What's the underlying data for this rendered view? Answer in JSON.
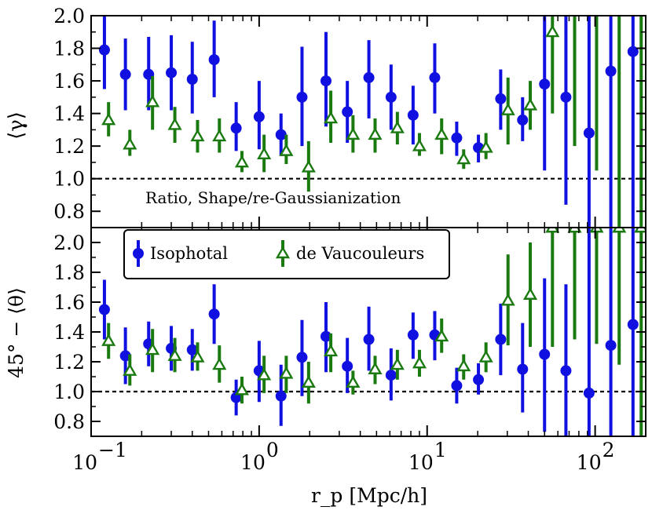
{
  "chart_data": [
    {
      "type": "scatter",
      "panel": "top",
      "ylabel": "⟨γ⟩",
      "annotation": "Ratio, Shape/re-Gaussianization",
      "xscale": "log",
      "xlim": [
        0.1,
        200
      ],
      "ylim": [
        0.7,
        2.0
      ],
      "yticks": [
        0.8,
        1.0,
        1.2,
        1.4,
        1.6,
        1.8,
        2.0
      ],
      "ytick_labels": [
        "0.8",
        "1.0",
        "1.2",
        "1.4",
        "1.6",
        "1.8",
        "2.0"
      ],
      "reference_line": 1.0,
      "series": [
        {
          "name": "Isophotal",
          "color": "#1010e0",
          "marker": "circle",
          "points": [
            {
              "x": 0.12,
              "y": 1.79,
              "lo": 1.55,
              "hi": 2.05
            },
            {
              "x": 0.16,
              "y": 1.64,
              "lo": 1.42,
              "hi": 1.86
            },
            {
              "x": 0.22,
              "y": 1.64,
              "lo": 1.42,
              "hi": 1.87
            },
            {
              "x": 0.3,
              "y": 1.65,
              "lo": 1.42,
              "hi": 1.88
            },
            {
              "x": 0.4,
              "y": 1.61,
              "lo": 1.4,
              "hi": 1.84
            },
            {
              "x": 0.54,
              "y": 1.73,
              "lo": 1.5,
              "hi": 1.97
            },
            {
              "x": 0.73,
              "y": 1.31,
              "lo": 1.17,
              "hi": 1.47
            },
            {
              "x": 1.0,
              "y": 1.38,
              "lo": 1.18,
              "hi": 1.6
            },
            {
              "x": 1.35,
              "y": 1.27,
              "lo": 1.14,
              "hi": 1.4
            },
            {
              "x": 1.8,
              "y": 1.5,
              "lo": 1.2,
              "hi": 1.81
            },
            {
              "x": 2.5,
              "y": 1.6,
              "lo": 1.32,
              "hi": 1.9
            },
            {
              "x": 3.35,
              "y": 1.41,
              "lo": 1.22,
              "hi": 1.6
            },
            {
              "x": 4.5,
              "y": 1.62,
              "lo": 1.37,
              "hi": 1.85
            },
            {
              "x": 6.1,
              "y": 1.5,
              "lo": 1.3,
              "hi": 1.7
            },
            {
              "x": 8.25,
              "y": 1.39,
              "lo": 1.21,
              "hi": 1.57
            },
            {
              "x": 11.1,
              "y": 1.62,
              "lo": 1.4,
              "hi": 1.83
            },
            {
              "x": 15.0,
              "y": 1.25,
              "lo": 1.14,
              "hi": 1.35
            },
            {
              "x": 20.2,
              "y": 1.19,
              "lo": 1.1,
              "hi": 1.27
            },
            {
              "x": 27.4,
              "y": 1.49,
              "lo": 1.3,
              "hi": 1.67
            },
            {
              "x": 37.0,
              "y": 1.36,
              "lo": 1.23,
              "hi": 1.5
            },
            {
              "x": 50.0,
              "y": 1.58,
              "lo": 1.05,
              "hi": 2.05
            },
            {
              "x": 67.0,
              "y": 1.5,
              "lo": 0.84,
              "hi": 2.05
            },
            {
              "x": 92.0,
              "y": 1.28,
              "lo": 0.7,
              "hi": 2.05
            },
            {
              "x": 124.0,
              "y": 1.66,
              "lo": 0.7,
              "hi": 2.05
            },
            {
              "x": 168.0,
              "y": 1.78,
              "lo": 0.7,
              "hi": 2.05
            }
          ]
        },
        {
          "name": "de Vaucouleurs",
          "color": "#1a7a10",
          "marker": "triangle",
          "points": [
            {
              "x": 0.127,
              "y": 1.36,
              "lo": 1.26,
              "hi": 1.47
            },
            {
              "x": 0.17,
              "y": 1.21,
              "lo": 1.14,
              "hi": 1.3
            },
            {
              "x": 0.232,
              "y": 1.47,
              "lo": 1.3,
              "hi": 1.63
            },
            {
              "x": 0.315,
              "y": 1.33,
              "lo": 1.22,
              "hi": 1.44
            },
            {
              "x": 0.43,
              "y": 1.26,
              "lo": 1.16,
              "hi": 1.36
            },
            {
              "x": 0.58,
              "y": 1.26,
              "lo": 1.16,
              "hi": 1.37
            },
            {
              "x": 0.79,
              "y": 1.1,
              "lo": 1.04,
              "hi": 1.17
            },
            {
              "x": 1.07,
              "y": 1.15,
              "lo": 1.04,
              "hi": 1.27
            },
            {
              "x": 1.45,
              "y": 1.17,
              "lo": 1.09,
              "hi": 1.27
            },
            {
              "x": 1.97,
              "y": 1.07,
              "lo": 0.92,
              "hi": 1.23
            },
            {
              "x": 2.67,
              "y": 1.37,
              "lo": 1.22,
              "hi": 1.54
            },
            {
              "x": 3.62,
              "y": 1.27,
              "lo": 1.16,
              "hi": 1.39
            },
            {
              "x": 4.9,
              "y": 1.27,
              "lo": 1.16,
              "hi": 1.37
            },
            {
              "x": 6.65,
              "y": 1.31,
              "lo": 1.21,
              "hi": 1.41
            },
            {
              "x": 9.0,
              "y": 1.2,
              "lo": 1.14,
              "hi": 1.28
            },
            {
              "x": 12.2,
              "y": 1.27,
              "lo": 1.15,
              "hi": 1.37
            },
            {
              "x": 16.5,
              "y": 1.12,
              "lo": 1.06,
              "hi": 1.18
            },
            {
              "x": 22.4,
              "y": 1.19,
              "lo": 1.12,
              "hi": 1.28
            },
            {
              "x": 30.3,
              "y": 1.42,
              "lo": 1.21,
              "hi": 1.62
            },
            {
              "x": 41.1,
              "y": 1.45,
              "lo": 1.3,
              "hi": 1.6
            },
            {
              "x": 55.7,
              "y": 1.9,
              "lo": 1.4,
              "hi": 2.05
            },
            {
              "x": 75.5,
              "y": 2.05,
              "lo": 1.2,
              "hi": 2.05
            },
            {
              "x": 102.0,
              "y": 2.05,
              "lo": 1.05,
              "hi": 2.05
            },
            {
              "x": 139.0,
              "y": 2.05,
              "lo": 0.7,
              "hi": 2.05
            },
            {
              "x": 188.0,
              "y": 2.05,
              "lo": 0.7,
              "hi": 2.05
            }
          ]
        }
      ]
    },
    {
      "type": "scatter",
      "panel": "bottom",
      "ylabel": "45° − ⟨θ⟩",
      "xlabel": "r_p [Mpc/h]",
      "xscale": "log",
      "xlim": [
        0.1,
        200
      ],
      "ylim": [
        0.7,
        2.1
      ],
      "yticks": [
        0.8,
        1.0,
        1.2,
        1.4,
        1.6,
        1.8,
        2.0
      ],
      "ytick_labels": [
        "0.8",
        "1.0",
        "1.2",
        "1.4",
        "1.6",
        "1.8",
        "2.0"
      ],
      "xticks": [
        0.1,
        1,
        10,
        100
      ],
      "xtick_labels": [
        "10",
        "10",
        "10",
        "10"
      ],
      "xtick_exponents": [
        "−1",
        "0",
        "1",
        "2"
      ],
      "reference_line": 1.0,
      "legend": {
        "position": "upper-left",
        "entries": [
          "Isophotal",
          "de Vaucouleurs"
        ]
      },
      "series": [
        {
          "name": "Isophotal",
          "color": "#1010e0",
          "marker": "circle",
          "points": [
            {
              "x": 0.12,
              "y": 1.55,
              "lo": 1.35,
              "hi": 1.75
            },
            {
              "x": 0.16,
              "y": 1.24,
              "lo": 1.05,
              "hi": 1.43
            },
            {
              "x": 0.22,
              "y": 1.32,
              "lo": 1.17,
              "hi": 1.47
            },
            {
              "x": 0.3,
              "y": 1.29,
              "lo": 1.14,
              "hi": 1.44
            },
            {
              "x": 0.4,
              "y": 1.28,
              "lo": 1.14,
              "hi": 1.42
            },
            {
              "x": 0.54,
              "y": 1.52,
              "lo": 1.32,
              "hi": 1.72
            },
            {
              "x": 0.73,
              "y": 0.96,
              "lo": 0.84,
              "hi": 1.08
            },
            {
              "x": 1.0,
              "y": 1.14,
              "lo": 0.93,
              "hi": 1.34
            },
            {
              "x": 1.35,
              "y": 0.97,
              "lo": 0.77,
              "hi": 1.18
            },
            {
              "x": 1.8,
              "y": 1.23,
              "lo": 0.97,
              "hi": 1.48
            },
            {
              "x": 2.5,
              "y": 1.37,
              "lo": 1.13,
              "hi": 1.6
            },
            {
              "x": 3.35,
              "y": 1.17,
              "lo": 0.99,
              "hi": 1.36
            },
            {
              "x": 4.5,
              "y": 1.35,
              "lo": 1.14,
              "hi": 1.57
            },
            {
              "x": 6.1,
              "y": 1.11,
              "lo": 0.94,
              "hi": 1.29
            },
            {
              "x": 8.25,
              "y": 1.38,
              "lo": 1.22,
              "hi": 1.53
            },
            {
              "x": 11.1,
              "y": 1.38,
              "lo": 1.21,
              "hi": 1.54
            },
            {
              "x": 15.0,
              "y": 1.04,
              "lo": 0.92,
              "hi": 1.16
            },
            {
              "x": 20.2,
              "y": 1.08,
              "lo": 0.98,
              "hi": 1.19
            },
            {
              "x": 27.4,
              "y": 1.35,
              "lo": 1.11,
              "hi": 1.59
            },
            {
              "x": 37.0,
              "y": 1.15,
              "lo": 0.86,
              "hi": 1.46
            },
            {
              "x": 50.0,
              "y": 1.25,
              "lo": 0.73,
              "hi": 1.76
            },
            {
              "x": 67.0,
              "y": 1.14,
              "lo": 0.7,
              "hi": 1.72
            },
            {
              "x": 92.0,
              "y": 0.99,
              "lo": 0.7,
              "hi": 2.1
            },
            {
              "x": 124.0,
              "y": 1.31,
              "lo": 0.7,
              "hi": 2.1
            },
            {
              "x": 168.0,
              "y": 1.45,
              "lo": 0.7,
              "hi": 2.1
            }
          ]
        },
        {
          "name": "de Vaucouleurs",
          "color": "#1a7a10",
          "marker": "triangle",
          "points": [
            {
              "x": 0.127,
              "y": 1.34,
              "lo": 1.22,
              "hi": 1.46
            },
            {
              "x": 0.17,
              "y": 1.14,
              "lo": 1.04,
              "hi": 1.25
            },
            {
              "x": 0.232,
              "y": 1.28,
              "lo": 1.13,
              "hi": 1.42
            },
            {
              "x": 0.315,
              "y": 1.24,
              "lo": 1.13,
              "hi": 1.36
            },
            {
              "x": 0.43,
              "y": 1.23,
              "lo": 1.14,
              "hi": 1.33
            },
            {
              "x": 0.58,
              "y": 1.18,
              "lo": 1.06,
              "hi": 1.31
            },
            {
              "x": 0.79,
              "y": 1.01,
              "lo": 0.92,
              "hi": 1.1
            },
            {
              "x": 1.07,
              "y": 1.11,
              "lo": 0.99,
              "hi": 1.24
            },
            {
              "x": 1.45,
              "y": 1.12,
              "lo": 0.99,
              "hi": 1.24
            },
            {
              "x": 1.97,
              "y": 1.06,
              "lo": 0.92,
              "hi": 1.2
            },
            {
              "x": 2.67,
              "y": 1.27,
              "lo": 1.13,
              "hi": 1.39
            },
            {
              "x": 3.62,
              "y": 1.06,
              "lo": 0.98,
              "hi": 1.14
            },
            {
              "x": 4.9,
              "y": 1.15,
              "lo": 1.05,
              "hi": 1.24
            },
            {
              "x": 6.65,
              "y": 1.18,
              "lo": 1.08,
              "hi": 1.28
            },
            {
              "x": 9.0,
              "y": 1.19,
              "lo": 1.1,
              "hi": 1.28
            },
            {
              "x": 12.2,
              "y": 1.37,
              "lo": 1.26,
              "hi": 1.49
            },
            {
              "x": 16.5,
              "y": 1.17,
              "lo": 1.08,
              "hi": 1.25
            },
            {
              "x": 22.4,
              "y": 1.23,
              "lo": 1.13,
              "hi": 1.33
            },
            {
              "x": 30.3,
              "y": 1.61,
              "lo": 1.31,
              "hi": 1.92
            },
            {
              "x": 41.1,
              "y": 1.65,
              "lo": 1.3,
              "hi": 2.0
            },
            {
              "x": 55.7,
              "y": 2.1,
              "lo": 1.3,
              "hi": 2.1
            },
            {
              "x": 75.5,
              "y": 2.1,
              "lo": 1.35,
              "hi": 2.1
            },
            {
              "x": 102.0,
              "y": 2.1,
              "lo": 1.32,
              "hi": 2.1
            },
            {
              "x": 139.0,
              "y": 2.1,
              "lo": 1.18,
              "hi": 2.1
            },
            {
              "x": 188.0,
              "y": 2.1,
              "lo": 0.7,
              "hi": 2.1
            }
          ]
        }
      ]
    }
  ]
}
